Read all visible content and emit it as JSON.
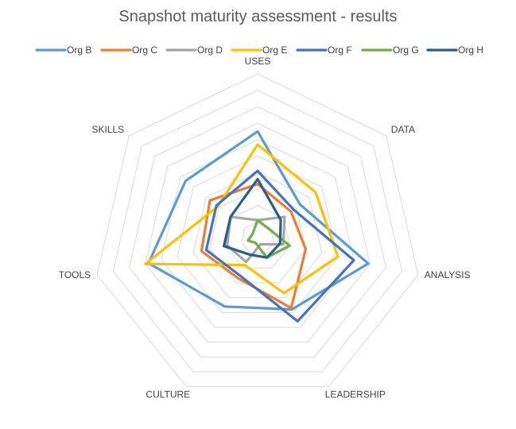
{
  "chart_data": {
    "type": "radar",
    "title": "Snapshot maturity assessment - results",
    "categories": [
      "USES",
      "DATA",
      "ANALYSIS",
      "LEADERSHIP",
      "CULTURE",
      "TOOLS",
      "SKILLS"
    ],
    "rlim": [
      0,
      10
    ],
    "grid": true,
    "legend_position": "top",
    "series": [
      {
        "name": "Org B",
        "color": "#5B9BD5",
        "values": [
          6.5,
          3.3,
          6.9,
          4.8,
          4.6,
          6.8,
          5.6
        ]
      },
      {
        "name": "Org C",
        "color": "#ED7D31",
        "values": [
          3.3,
          2.6,
          3.0,
          4.7,
          2.7,
          3.5,
          3.7
        ]
      },
      {
        "name": "Org D",
        "color": "#A5A5A5",
        "values": [
          1.1,
          2.1,
          1.6,
          0.4,
          1.6,
          1.9,
          2.1
        ]
      },
      {
        "name": "Org E",
        "color": "#FFC000",
        "values": [
          5.7,
          4.5,
          5.0,
          3.7,
          1.8,
          7.0,
          3.1
        ]
      },
      {
        "name": "Org F",
        "color": "#4472C4",
        "values": [
          4.1,
          2.8,
          6.0,
          5.6,
          2.5,
          3.2,
          3.2
        ]
      },
      {
        "name": "Org G",
        "color": "#70AD47",
        "values": [
          1.1,
          0.9,
          2.0,
          1.3,
          0.3,
          0.6,
          0.4
        ]
      },
      {
        "name": "Org H",
        "color": "#255E91",
        "values": [
          3.6,
          1.8,
          1.4,
          1.3,
          1.1,
          2.1,
          2.1
        ]
      }
    ]
  }
}
